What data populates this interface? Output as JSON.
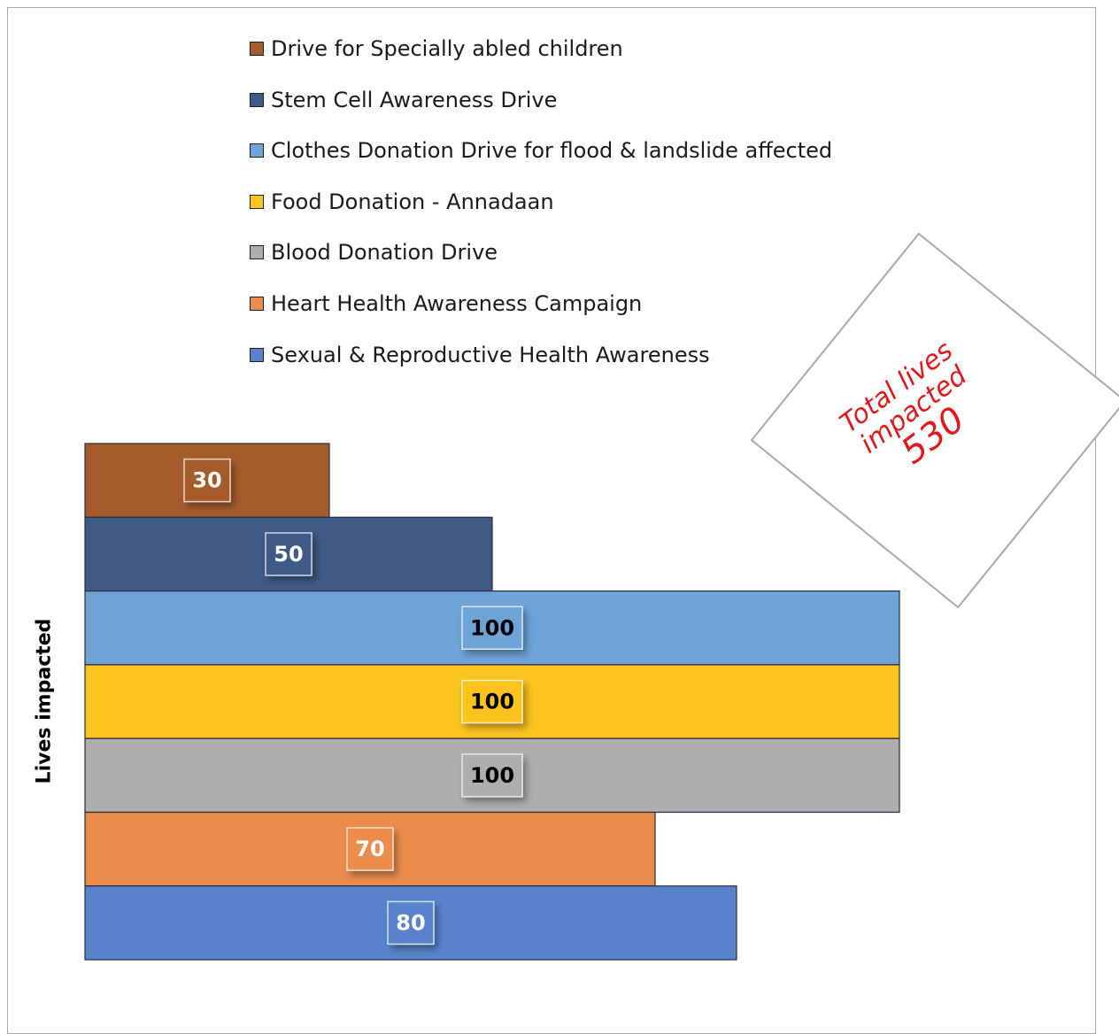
{
  "chart_data": {
    "type": "bar",
    "orientation": "horizontal-stacked-tiers",
    "ylabel": "Lives impacted",
    "xlim": [
      0,
      100
    ],
    "grid": false,
    "legend_position": "top",
    "series": [
      {
        "name": "Drive for Specially abled children",
        "value": 30,
        "color": "#a55c2c",
        "label_color": "#ffffff"
      },
      {
        "name": "Stem Cell Awareness Drive",
        "value": 50,
        "color": "#3f5a87",
        "label_color": "#ffffff"
      },
      {
        "name": "Clothes Donation Drive for flood & landslide affected",
        "value": 100,
        "color": "#6ea4d8",
        "label_color": "#000000"
      },
      {
        "name": "Food Donation - Annadaan",
        "value": 100,
        "color": "#fbc41e",
        "label_color": "#000000"
      },
      {
        "name": "Blood Donation Drive",
        "value": 100,
        "color": "#aeaeae",
        "label_color": "#000000"
      },
      {
        "name": "Heart Health Awareness Campaign",
        "value": 70,
        "color": "#ec8c4c",
        "label_color": "#ffffff"
      },
      {
        "name": "Sexual & Reproductive Health Awareness",
        "value": 80,
        "color": "#5883cc",
        "label_color": "#ffffff"
      }
    ],
    "annotation": {
      "line1": "Total lives",
      "line2": "impacted",
      "line3": "530",
      "color": "#e0191e"
    }
  }
}
